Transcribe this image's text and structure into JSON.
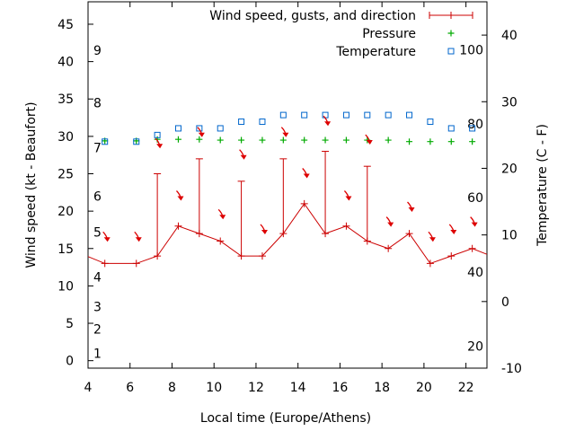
{
  "chart_data": {
    "type": "line",
    "xlabel": "Local time (Europe/Athens)",
    "ylabel_left": "Wind speed (kt - Beaufort)",
    "ylabel_right": "Temperature (C - F)",
    "xlim": [
      4,
      23
    ],
    "ylim_left": [
      -1,
      48
    ],
    "ylim_right": [
      -10,
      45
    ],
    "x_ticks": [
      "4",
      "6",
      "8",
      "10",
      "12",
      "14",
      "16",
      "18",
      "20",
      "22"
    ],
    "y_ticks_left": [
      "0",
      "5",
      "10",
      "15",
      "20",
      "25",
      "30",
      "35",
      "40",
      "45"
    ],
    "y_ticks_right": [
      "-10",
      "0",
      "10",
      "20",
      "30",
      "40"
    ],
    "beaufort_labels": [
      {
        "label": "1",
        "kt": 1
      },
      {
        "label": "2",
        "kt": 4.2
      },
      {
        "label": "3",
        "kt": 7.2
      },
      {
        "label": "4",
        "kt": 11.2
      },
      {
        "label": "5",
        "kt": 17.2
      },
      {
        "label": "6",
        "kt": 22
      },
      {
        "label": "7",
        "kt": 28.5
      },
      {
        "label": "8",
        "kt": 34.5
      },
      {
        "label": "9",
        "kt": 41.5
      }
    ],
    "fahrenheit_labels": [
      {
        "label": "20",
        "c": -6.7
      },
      {
        "label": "40",
        "c": 4.4
      },
      {
        "label": "60",
        "c": 15.6
      },
      {
        "label": "80",
        "c": 26.7
      },
      {
        "label": "100",
        "c": 37.8
      }
    ],
    "legend_position": "top-right",
    "series": [
      {
        "name": "Wind speed, gusts, and direction",
        "color": "#cc0000",
        "x": [
          3.5,
          4.8,
          6.3,
          7.3,
          8.3,
          9.3,
          10.3,
          11.3,
          12.3,
          13.3,
          14.3,
          15.3,
          16.3,
          17.3,
          18.3,
          19.3,
          20.3,
          21.3,
          22.3,
          23.2
        ],
        "speed": [
          14.5,
          13,
          13,
          14,
          18,
          17,
          16,
          14,
          14,
          17,
          21,
          17,
          18,
          16,
          15,
          17,
          13,
          14,
          15,
          14
        ],
        "gusts": [
          null,
          null,
          null,
          25,
          null,
          27,
          null,
          24,
          null,
          27,
          null,
          28,
          null,
          26,
          null,
          null,
          null,
          null,
          null,
          null
        ]
      },
      {
        "name": "Pressure",
        "color": "#00aa00",
        "x": [
          4.8,
          6.3,
          7.3,
          8.3,
          9.3,
          10.3,
          11.3,
          12.3,
          13.3,
          14.3,
          15.3,
          16.3,
          17.3,
          18.3,
          19.3,
          20.3,
          21.3,
          22.3
        ],
        "values": [
          29.4,
          29.4,
          29.6,
          29.6,
          29.6,
          29.5,
          29.5,
          29.5,
          29.5,
          29.5,
          29.5,
          29.5,
          29.5,
          29.5,
          29.3,
          29.3,
          29.3,
          29.3
        ]
      },
      {
        "name": "Temperature",
        "color": "#0066cc",
        "x": [
          4.8,
          6.3,
          7.3,
          8.3,
          9.3,
          10.3,
          11.3,
          12.3,
          13.3,
          14.3,
          15.3,
          16.3,
          17.3,
          18.3,
          19.3,
          20.3,
          21.3,
          22.3
        ],
        "values": [
          24,
          24,
          25,
          26,
          26,
          26,
          27,
          27,
          28,
          28,
          28,
          28,
          28,
          28,
          28,
          27,
          26,
          26
        ]
      }
    ],
    "wind_direction": [
      {
        "x": 4.8,
        "kt": 16.5
      },
      {
        "x": 6.3,
        "kt": 16.5
      },
      {
        "x": 7.3,
        "kt": 29
      },
      {
        "x": 8.3,
        "kt": 22
      },
      {
        "x": 9.3,
        "kt": 30.5
      },
      {
        "x": 10.3,
        "kt": 19.5
      },
      {
        "x": 11.3,
        "kt": 27.5
      },
      {
        "x": 12.3,
        "kt": 17.5
      },
      {
        "x": 13.3,
        "kt": 30.5
      },
      {
        "x": 14.3,
        "kt": 25
      },
      {
        "x": 15.3,
        "kt": 32
      },
      {
        "x": 16.3,
        "kt": 22
      },
      {
        "x": 17.3,
        "kt": 29.5
      },
      {
        "x": 18.3,
        "kt": 18.5
      },
      {
        "x": 19.3,
        "kt": 20.5
      },
      {
        "x": 20.3,
        "kt": 16.5
      },
      {
        "x": 21.3,
        "kt": 17.5
      },
      {
        "x": 22.3,
        "kt": 18.5
      }
    ]
  }
}
